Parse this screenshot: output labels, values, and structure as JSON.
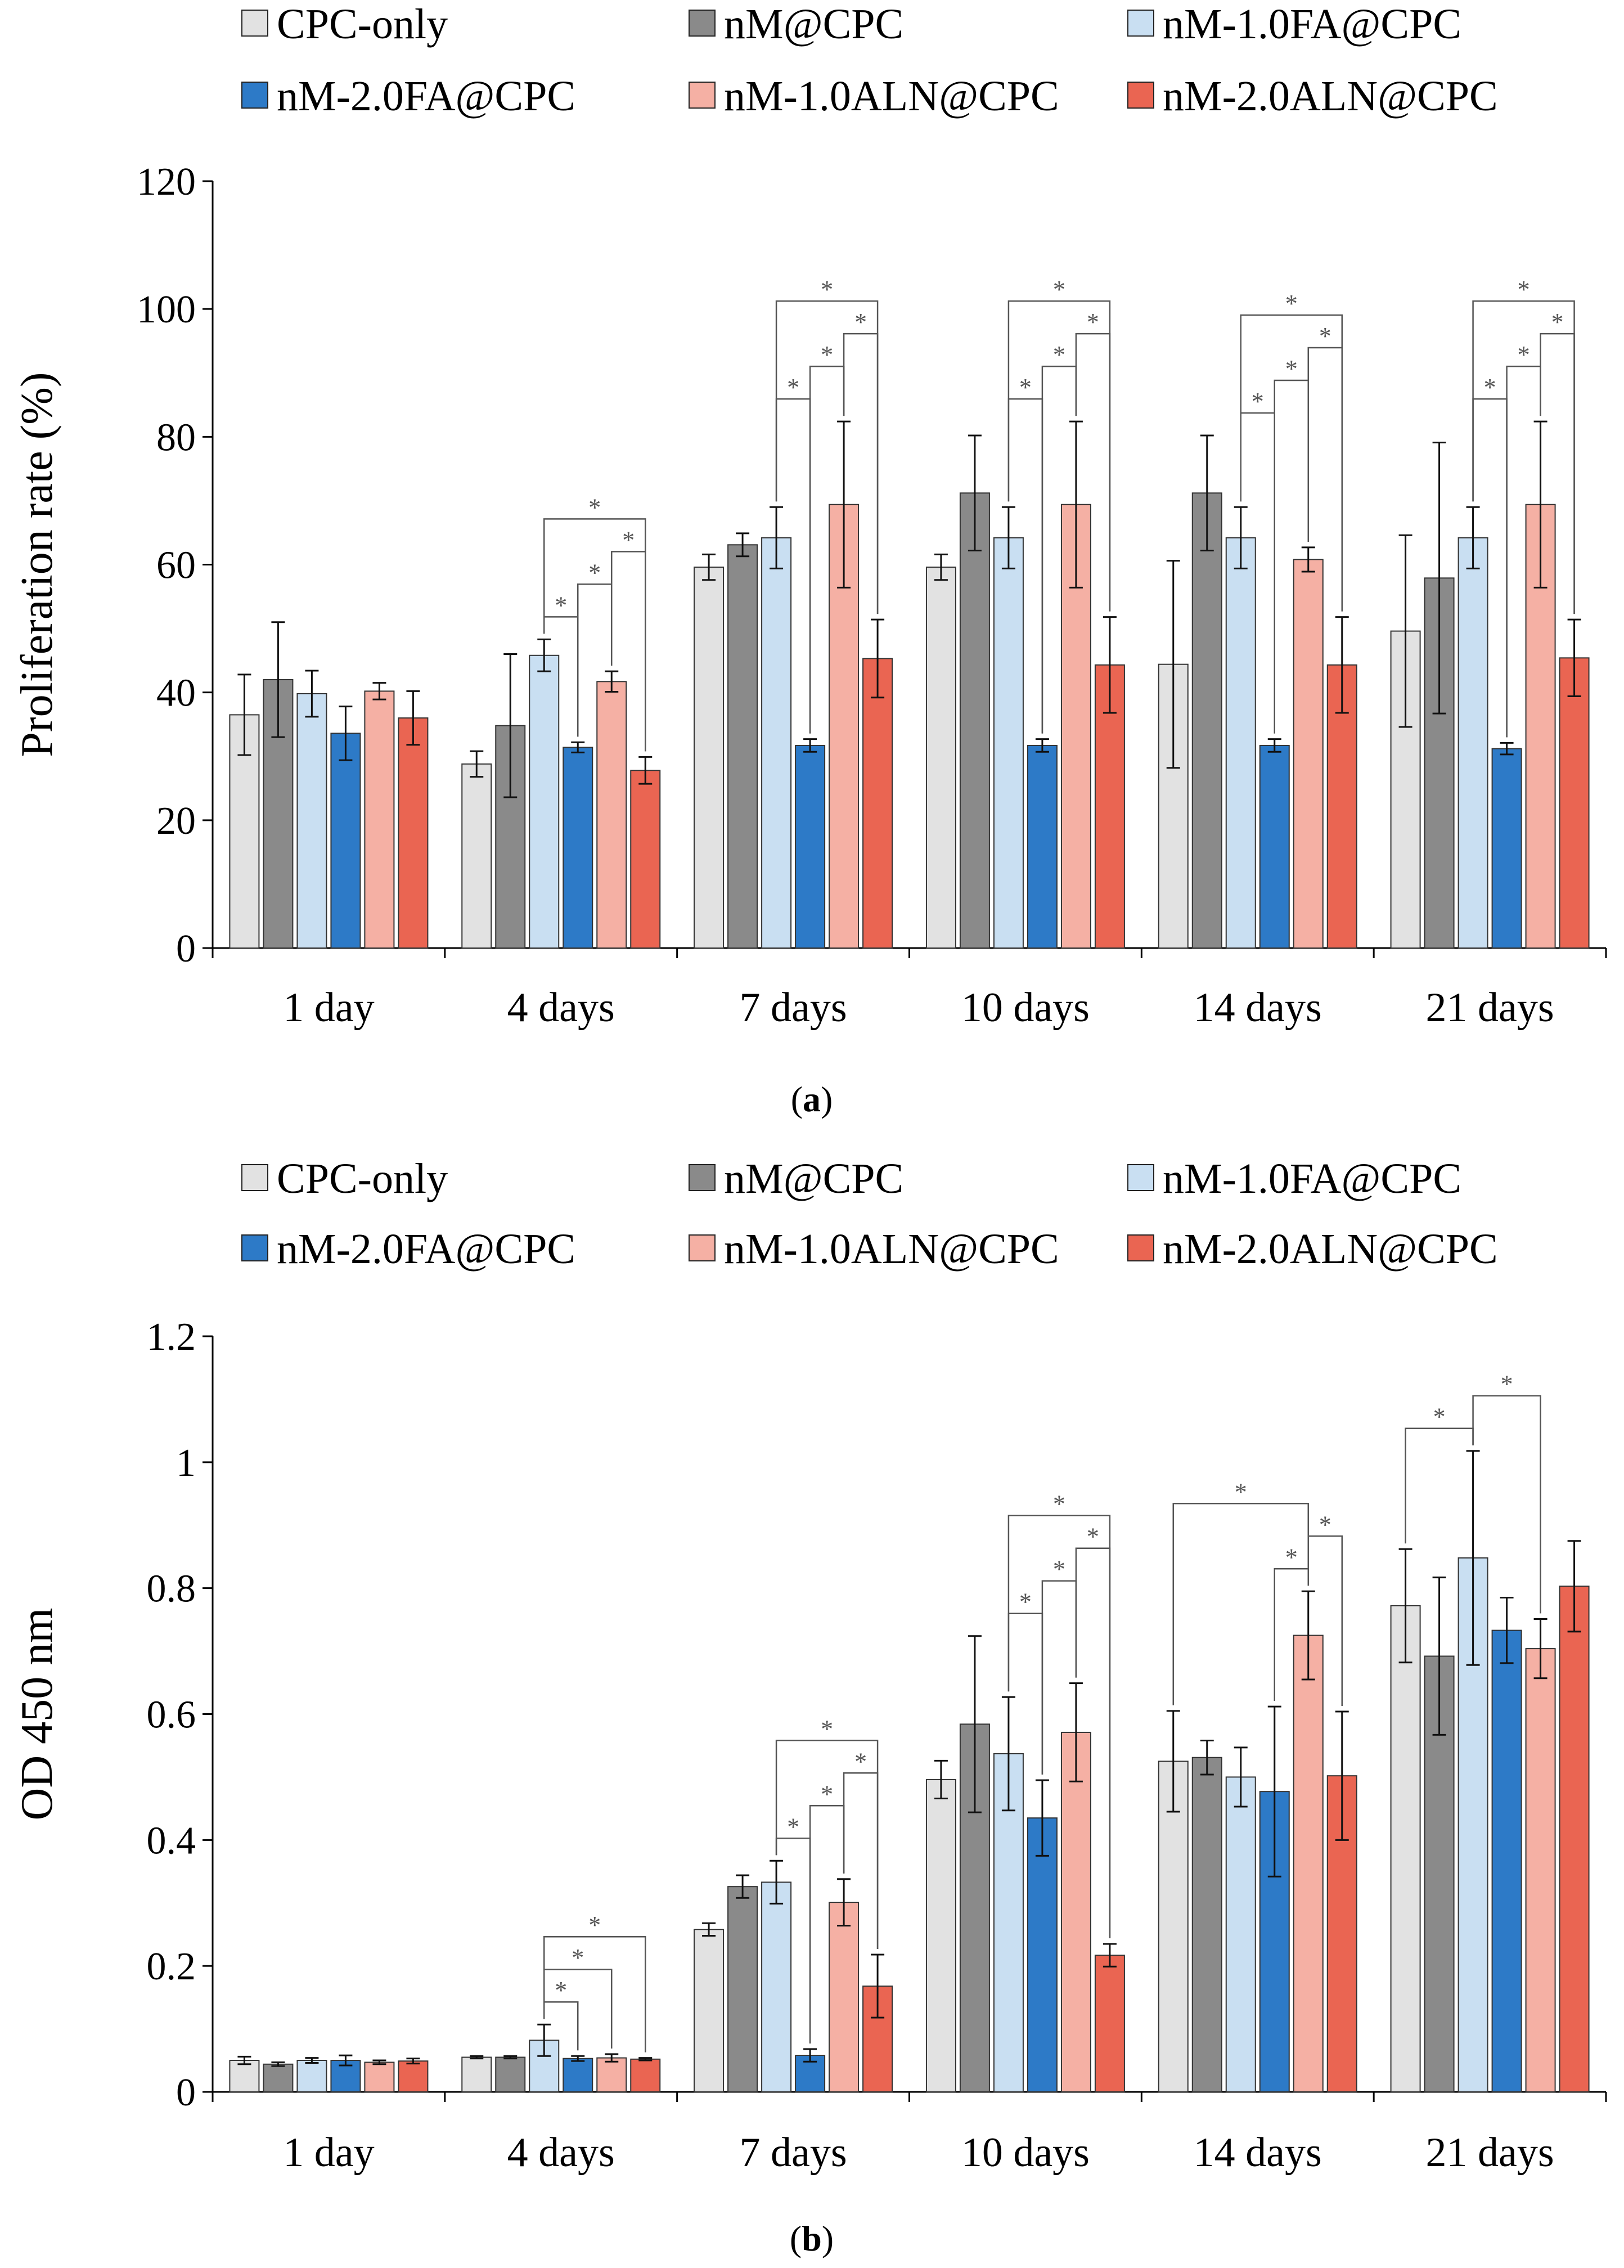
{
  "series_colors": [
    "#e2e2e2",
    "#8a8a8a",
    "#c9dff2",
    "#2d7ac7",
    "#f5b0a4",
    "#ea6552"
  ],
  "chart_data": [
    {
      "type": "bar",
      "panel": "a",
      "panel_label": "(a)",
      "ylabel": "Proliferation rate (%)",
      "xlabel": "",
      "ylim": [
        0,
        120
      ],
      "yticks": [
        "0",
        "20",
        "40",
        "60",
        "80",
        "100",
        "120"
      ],
      "ytick_values": [
        0,
        20,
        40,
        60,
        80,
        100,
        120
      ],
      "categories": [
        "1 day",
        "4 days",
        "7 days",
        "10 days",
        "14 days",
        "21 days"
      ],
      "series": [
        {
          "name": "CPC-only",
          "values": [
            36.5,
            28.8,
            59.6,
            59.6,
            44.4,
            49.6
          ],
          "errors": [
            6.3,
            2.0,
            2.0,
            2.0,
            16.2,
            15.0
          ]
        },
        {
          "name": "nM@CPC",
          "values": [
            42.0,
            34.8,
            63.1,
            71.2,
            71.2,
            57.9
          ],
          "errors": [
            9.0,
            11.2,
            1.8,
            9.0,
            9.0,
            21.2
          ]
        },
        {
          "name": "nM-1.0FA@CPC",
          "values": [
            39.8,
            45.8,
            64.2,
            64.2,
            64.2,
            64.2
          ],
          "errors": [
            3.6,
            2.5,
            4.8,
            4.8,
            4.8,
            4.8
          ]
        },
        {
          "name": "nM-2.0FA@CPC",
          "values": [
            33.6,
            31.4,
            31.7,
            31.7,
            31.7,
            31.2
          ],
          "errors": [
            4.2,
            0.8,
            1.0,
            1.0,
            1.0,
            0.9
          ]
        },
        {
          "name": "nM-1.0ALN@CPC",
          "values": [
            40.2,
            41.7,
            69.4,
            69.4,
            60.8,
            69.4
          ],
          "errors": [
            1.3,
            1.6,
            13.0,
            13.0,
            1.9,
            13.0
          ]
        },
        {
          "name": "nM-2.0ALN@CPC",
          "values": [
            36.0,
            27.8,
            45.3,
            44.3,
            44.3,
            45.4
          ],
          "errors": [
            4.2,
            2.1,
            6.1,
            7.5,
            7.5,
            6.0
          ]
        }
      ],
      "significance": [
        {
          "category": 1,
          "from": 2,
          "to": 3,
          "label": "*"
        },
        {
          "category": 1,
          "from": 2,
          "to": 5,
          "label": "*"
        },
        {
          "category": 1,
          "from": 4,
          "to": 3,
          "label": "*"
        },
        {
          "category": 1,
          "from": 4,
          "to": 5,
          "label": "*"
        },
        {
          "category": 2,
          "from": 2,
          "to": 3,
          "label": "*"
        },
        {
          "category": 2,
          "from": 2,
          "to": 5,
          "label": "*"
        },
        {
          "category": 2,
          "from": 4,
          "to": 3,
          "label": "*"
        },
        {
          "category": 2,
          "from": 4,
          "to": 5,
          "label": "*"
        },
        {
          "category": 3,
          "from": 2,
          "to": 3,
          "label": "*"
        },
        {
          "category": 3,
          "from": 2,
          "to": 5,
          "label": "*"
        },
        {
          "category": 3,
          "from": 4,
          "to": 3,
          "label": "*"
        },
        {
          "category": 3,
          "from": 4,
          "to": 5,
          "label": "*"
        },
        {
          "category": 4,
          "from": 2,
          "to": 3,
          "label": "*"
        },
        {
          "category": 4,
          "from": 2,
          "to": 5,
          "label": "*"
        },
        {
          "category": 4,
          "from": 4,
          "to": 3,
          "label": "*"
        },
        {
          "category": 4,
          "from": 4,
          "to": 5,
          "label": "*"
        },
        {
          "category": 5,
          "from": 2,
          "to": 3,
          "label": "*"
        },
        {
          "category": 5,
          "from": 2,
          "to": 5,
          "label": "*"
        },
        {
          "category": 5,
          "from": 4,
          "to": 3,
          "label": "*"
        },
        {
          "category": 5,
          "from": 4,
          "to": 5,
          "label": "*"
        }
      ]
    },
    {
      "type": "bar",
      "panel": "b",
      "panel_label": "(b)",
      "ylabel": "OD 450 nm",
      "xlabel": "",
      "ylim": [
        0,
        1.2
      ],
      "yticks": [
        "0",
        "0.2",
        "0.4",
        "0.6",
        "0.8",
        "1",
        "1.2"
      ],
      "ytick_values": [
        0,
        0.2,
        0.4,
        0.6,
        0.8,
        1.0,
        1.2
      ],
      "categories": [
        "1 day",
        "4 days",
        "7 days",
        "10 days",
        "14 days",
        "21 days"
      ],
      "series": [
        {
          "name": "CPC-only",
          "values": [
            0.05,
            0.055,
            0.258,
            0.496,
            0.525,
            0.772
          ],
          "errors": [
            0.006,
            0.002,
            0.01,
            0.03,
            0.08,
            0.09
          ]
        },
        {
          "name": "nM@CPC",
          "values": [
            0.044,
            0.055,
            0.326,
            0.584,
            0.531,
            0.692
          ],
          "errors": [
            0.003,
            0.002,
            0.018,
            0.14,
            0.027,
            0.125
          ]
        },
        {
          "name": "nM-1.0FA@CPC",
          "values": [
            0.05,
            0.082,
            0.333,
            0.537,
            0.5,
            0.848
          ],
          "errors": [
            0.004,
            0.025,
            0.034,
            0.09,
            0.047,
            0.17
          ]
        },
        {
          "name": "nM-2.0FA@CPC",
          "values": [
            0.05,
            0.053,
            0.058,
            0.435,
            0.477,
            0.733
          ],
          "errors": [
            0.008,
            0.004,
            0.01,
            0.06,
            0.135,
            0.052
          ]
        },
        {
          "name": "nM-1.0ALN@CPC",
          "values": [
            0.047,
            0.054,
            0.301,
            0.571,
            0.725,
            0.704
          ],
          "errors": [
            0.003,
            0.006,
            0.037,
            0.078,
            0.07,
            0.047
          ]
        },
        {
          "name": "nM-2.0ALN@CPC",
          "values": [
            0.049,
            0.052,
            0.168,
            0.217,
            0.502,
            0.803
          ],
          "errors": [
            0.004,
            0.002,
            0.05,
            0.018,
            0.102,
            0.072
          ]
        }
      ],
      "significance": [
        {
          "category": 1,
          "from": 2,
          "to": 3,
          "label": "*"
        },
        {
          "category": 1,
          "from": 2,
          "to": 4,
          "label": "*"
        },
        {
          "category": 1,
          "from": 2,
          "to": 5,
          "label": "*"
        },
        {
          "category": 2,
          "from": 2,
          "to": 3,
          "label": "*"
        },
        {
          "category": 2,
          "from": 2,
          "to": 5,
          "label": "*"
        },
        {
          "category": 2,
          "from": 4,
          "to": 3,
          "label": "*"
        },
        {
          "category": 2,
          "from": 4,
          "to": 5,
          "label": "*"
        },
        {
          "category": 3,
          "from": 2,
          "to": 3,
          "label": "*"
        },
        {
          "category": 3,
          "from": 2,
          "to": 5,
          "label": "*"
        },
        {
          "category": 3,
          "from": 4,
          "to": 3,
          "label": "*"
        },
        {
          "category": 3,
          "from": 4,
          "to": 5,
          "label": "*"
        },
        {
          "category": 4,
          "from": 0,
          "to": 4,
          "label": "*"
        },
        {
          "category": 4,
          "from": 4,
          "to": 3,
          "label": "*"
        },
        {
          "category": 4,
          "from": 4,
          "to": 5,
          "label": "*"
        },
        {
          "category": 5,
          "from": 2,
          "to": 0,
          "label": "*"
        },
        {
          "category": 5,
          "from": 2,
          "to": 4,
          "label": "*"
        }
      ]
    }
  ]
}
